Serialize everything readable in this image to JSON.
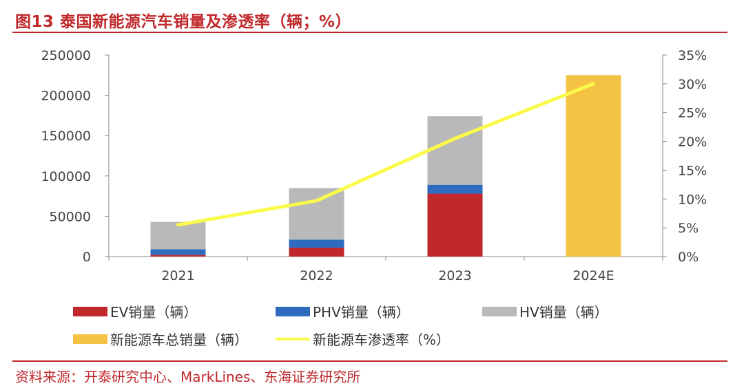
{
  "title": "图13  泰国新能源汽车销量及渗透率（辆；%）",
  "source": "资料来源：开泰研究中心、MarkLines、东海证券研究所",
  "colors": {
    "ev": "#c0282b",
    "phv": "#2e6bbf",
    "hv": "#b9b9b9",
    "nev_total": "#f4c343",
    "penetration": "#fafa4b",
    "axis": "#888888",
    "accent": "#c0282b"
  },
  "chart_data": {
    "type": "bar",
    "stacked": true,
    "categories": [
      "2021",
      "2022",
      "2023",
      "2024E"
    ],
    "series": [
      {
        "name": "EV销量（辆）",
        "values": [
          2000,
          11000,
          78000,
          0
        ],
        "axis": "left",
        "color_key": "ev"
      },
      {
        "name": "PHV销量（辆）",
        "values": [
          7000,
          10000,
          11000,
          0
        ],
        "axis": "left",
        "color_key": "phv"
      },
      {
        "name": "HV销量（辆）",
        "values": [
          34000,
          64000,
          85000,
          0
        ],
        "axis": "left",
        "color_key": "hv"
      },
      {
        "name": "新能源车总销量（辆）",
        "values": [
          0,
          0,
          0,
          225000
        ],
        "axis": "left",
        "color_key": "nev_total"
      },
      {
        "name": "新能源车渗透率（%）",
        "type": "line",
        "values": [
          5.5,
          9.7,
          20.5,
          30.0
        ],
        "axis": "right",
        "color_key": "penetration"
      }
    ],
    "y_left": {
      "min": 0,
      "max": 250000,
      "ticks": [
        "0",
        "50000",
        "100000",
        "150000",
        "200000",
        "250000"
      ]
    },
    "y_right": {
      "min": 0,
      "max": 35,
      "ticks": [
        "0%",
        "5%",
        "10%",
        "15%",
        "20%",
        "25%",
        "30%",
        "35%"
      ]
    },
    "legend": [
      {
        "label": "EV销量（辆）",
        "kind": "bar",
        "color_key": "ev"
      },
      {
        "label": "PHV销量（辆）",
        "kind": "bar",
        "color_key": "phv"
      },
      {
        "label": "HV销量（辆）",
        "kind": "bar",
        "color_key": "hv"
      },
      {
        "label": "新能源车总销量（辆）",
        "kind": "bar",
        "color_key": "nev_total"
      },
      {
        "label": "新能源车渗透率（%）",
        "kind": "line",
        "color_key": "penetration"
      }
    ]
  }
}
